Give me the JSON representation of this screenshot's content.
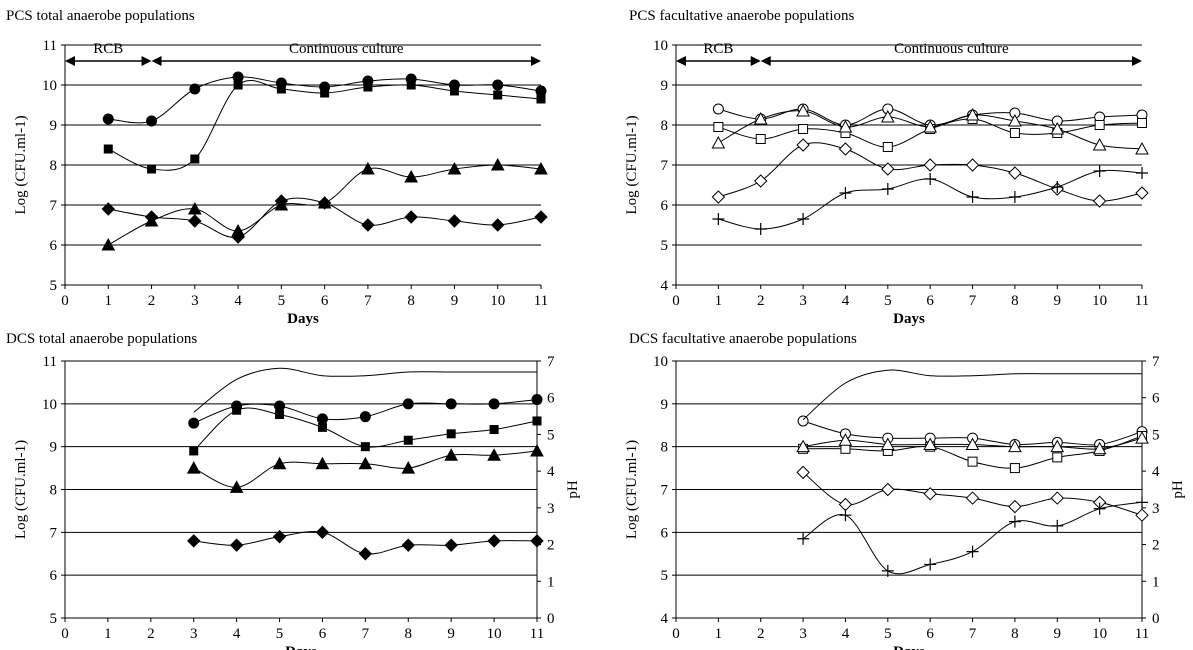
{
  "chart_data": [
    {
      "type": "line",
      "title": "PCS total anaerobe populations",
      "xlabel": "Days",
      "ylabel": "Log (CFU.ml-1)",
      "ylim": [
        5,
        11
      ],
      "xlim": [
        0,
        11
      ],
      "x_ticks": [
        "0",
        "1",
        "2",
        "3",
        "4",
        "5",
        "6",
        "7",
        "8",
        "9",
        "10",
        "11"
      ],
      "y_ticks": [
        "5",
        "6",
        "7",
        "8",
        "9",
        "10",
        "11"
      ],
      "grid": "horizontal",
      "phases": [
        {
          "label": "RCB",
          "from": 0,
          "to": 2
        },
        {
          "label": "Continuous culture",
          "from": 2,
          "to": 11
        }
      ],
      "series": [
        {
          "marker": "circle-filled",
          "x": [
            1,
            2,
            3,
            4,
            5,
            6,
            7,
            8,
            9,
            10,
            11
          ],
          "values": [
            9.15,
            9.1,
            9.9,
            10.2,
            10.05,
            9.95,
            10.1,
            10.15,
            10.0,
            10.0,
            9.85
          ]
        },
        {
          "marker": "square-filled",
          "x": [
            1,
            2,
            3,
            4,
            5,
            6,
            7,
            8,
            9,
            10,
            11
          ],
          "values": [
            8.4,
            7.9,
            8.15,
            10.0,
            9.9,
            9.8,
            9.95,
            10.0,
            9.85,
            9.75,
            9.65
          ]
        },
        {
          "marker": "triangle-filled",
          "x": [
            1,
            2,
            3,
            4,
            5,
            6,
            7,
            8,
            9,
            10,
            11
          ],
          "values": [
            6.0,
            6.6,
            6.9,
            6.35,
            7.0,
            7.05,
            7.9,
            7.7,
            7.9,
            8.0,
            7.9
          ]
        },
        {
          "marker": "diamond-filled",
          "x": [
            1,
            2,
            3,
            4,
            5,
            6,
            7,
            8,
            9,
            10,
            11
          ],
          "values": [
            6.9,
            6.7,
            6.6,
            6.2,
            7.1,
            7.05,
            6.5,
            6.7,
            6.6,
            6.5,
            6.7
          ]
        }
      ]
    },
    {
      "type": "line",
      "title": "PCS facultative anaerobe populations",
      "xlabel": "Days",
      "ylabel": "Log (CFU.ml-1)",
      "ylim": [
        4,
        10
      ],
      "xlim": [
        0,
        11
      ],
      "x_ticks": [
        "0",
        "1",
        "2",
        "3",
        "4",
        "5",
        "6",
        "7",
        "8",
        "9",
        "10",
        "11"
      ],
      "y_ticks": [
        "4",
        "5",
        "6",
        "7",
        "8",
        "9",
        "10"
      ],
      "grid": "horizontal",
      "phases": [
        {
          "label": "RCB",
          "from": 0,
          "to": 2
        },
        {
          "label": "Continuous culture",
          "from": 2,
          "to": 11
        }
      ],
      "series": [
        {
          "marker": "circle-open",
          "x": [
            1,
            2,
            3,
            4,
            5,
            6,
            7,
            8,
            9,
            10,
            11
          ],
          "values": [
            8.4,
            8.15,
            8.4,
            8.0,
            8.4,
            8.0,
            8.25,
            8.3,
            8.1,
            8.2,
            8.25
          ]
        },
        {
          "marker": "square-open",
          "x": [
            1,
            2,
            3,
            4,
            5,
            6,
            7,
            8,
            9,
            10,
            11
          ],
          "values": [
            7.95,
            7.65,
            7.9,
            7.8,
            7.45,
            7.9,
            8.15,
            7.8,
            7.8,
            8.0,
            8.05
          ]
        },
        {
          "marker": "triangle-open",
          "x": [
            1,
            2,
            3,
            4,
            5,
            6,
            7,
            8,
            9,
            10,
            11
          ],
          "values": [
            7.55,
            8.15,
            8.35,
            7.95,
            8.2,
            7.95,
            8.25,
            8.1,
            7.9,
            7.5,
            7.4
          ]
        },
        {
          "marker": "diamond-open",
          "x": [
            1,
            2,
            3,
            4,
            5,
            6,
            7,
            8,
            9,
            10,
            11
          ],
          "values": [
            6.2,
            6.6,
            7.5,
            7.4,
            6.9,
            7.0,
            7.0,
            6.8,
            6.4,
            6.1,
            6.3
          ]
        },
        {
          "marker": "plus",
          "x": [
            1,
            2,
            3,
            4,
            5,
            6,
            7,
            8,
            9,
            10,
            11
          ],
          "values": [
            5.65,
            5.4,
            5.65,
            6.3,
            6.4,
            6.65,
            6.2,
            6.2,
            6.45,
            6.85,
            6.8
          ]
        }
      ]
    },
    {
      "type": "line",
      "title": "DCS total anaerobe populations",
      "xlabel": "Days",
      "ylabel": "Log (CFU.ml-1)",
      "y2label": "pH",
      "ylim": [
        5,
        11
      ],
      "y2lim": [
        0,
        7
      ],
      "xlim": [
        0,
        11
      ],
      "x_ticks": [
        "0",
        "1",
        "2",
        "3",
        "4",
        "5",
        "6",
        "7",
        "8",
        "9",
        "10",
        "11"
      ],
      "y_ticks": [
        "5",
        "6",
        "7",
        "8",
        "9",
        "10",
        "11"
      ],
      "y2_ticks": [
        "0",
        "1",
        "2",
        "3",
        "4",
        "5",
        "6",
        "7"
      ],
      "grid": "horizontal",
      "series": [
        {
          "marker": "circle-filled",
          "x": [
            3,
            4,
            5,
            6,
            7,
            8,
            9,
            10,
            11
          ],
          "values": [
            9.55,
            9.95,
            9.95,
            9.65,
            9.7,
            10.0,
            10.0,
            10.0,
            10.1
          ]
        },
        {
          "marker": "square-filled",
          "x": [
            3,
            4,
            5,
            6,
            7,
            8,
            9,
            10,
            11
          ],
          "values": [
            8.9,
            9.85,
            9.75,
            9.45,
            9.0,
            9.15,
            9.3,
            9.4,
            9.6
          ]
        },
        {
          "marker": "triangle-filled",
          "x": [
            3,
            4,
            5,
            6,
            7,
            8,
            9,
            10,
            11
          ],
          "values": [
            8.5,
            8.05,
            8.6,
            8.6,
            8.6,
            8.5,
            8.8,
            8.8,
            8.9
          ]
        },
        {
          "marker": "diamond-filled",
          "x": [
            3,
            4,
            5,
            6,
            7,
            8,
            9,
            10,
            11
          ],
          "values": [
            6.8,
            6.7,
            6.9,
            7.0,
            6.5,
            6.7,
            6.7,
            6.8,
            6.8
          ]
        },
        {
          "marker": "none",
          "axis": "y2",
          "x": [
            3,
            4,
            5,
            6,
            7,
            8,
            9,
            10,
            11
          ],
          "values": [
            5.6,
            6.5,
            6.8,
            6.6,
            6.6,
            6.7,
            6.7,
            6.7,
            6.7
          ]
        }
      ]
    },
    {
      "type": "line",
      "title": "DCS facultative anaerobe populations",
      "xlabel": "Days",
      "ylabel": "Log (CFU.ml-1)",
      "y2label": "pH",
      "ylim": [
        4,
        10
      ],
      "y2lim": [
        0,
        7
      ],
      "xlim": [
        0,
        11
      ],
      "x_ticks": [
        "0",
        "1",
        "2",
        "3",
        "4",
        "5",
        "6",
        "7",
        "8",
        "9",
        "10",
        "11"
      ],
      "y_ticks": [
        "4",
        "5",
        "6",
        "7",
        "8",
        "9",
        "10"
      ],
      "y2_ticks": [
        "0",
        "1",
        "2",
        "3",
        "4",
        "5",
        "6",
        "7"
      ],
      "grid": "horizontal",
      "series": [
        {
          "marker": "circle-open",
          "x": [
            3,
            4,
            5,
            6,
            7,
            8,
            9,
            10,
            11
          ],
          "values": [
            8.6,
            8.3,
            8.2,
            8.2,
            8.2,
            8.05,
            8.1,
            8.05,
            8.35
          ]
        },
        {
          "marker": "square-open",
          "x": [
            3,
            4,
            5,
            6,
            7,
            8,
            9,
            10,
            11
          ],
          "values": [
            7.95,
            7.95,
            7.9,
            8.0,
            7.65,
            7.5,
            7.75,
            7.9,
            8.25
          ]
        },
        {
          "marker": "triangle-open",
          "x": [
            3,
            4,
            5,
            6,
            7,
            8,
            9,
            10,
            11
          ],
          "values": [
            8.0,
            8.15,
            8.05,
            8.05,
            8.05,
            8.0,
            8.0,
            7.95,
            8.2
          ]
        },
        {
          "marker": "diamond-open",
          "x": [
            3,
            4,
            5,
            6,
            7,
            8,
            9,
            10,
            11
          ],
          "values": [
            7.4,
            6.65,
            7.0,
            6.9,
            6.8,
            6.6,
            6.8,
            6.7,
            6.4
          ]
        },
        {
          "marker": "plus",
          "x": [
            3,
            4,
            5,
            6,
            7,
            8,
            9,
            10,
            11
          ],
          "values": [
            5.85,
            6.4,
            5.1,
            5.25,
            5.55,
            6.25,
            6.15,
            6.55,
            6.7
          ]
        },
        {
          "marker": "none",
          "axis": "y2",
          "x": [
            3,
            4,
            5,
            6,
            7,
            8,
            9,
            10,
            11
          ],
          "values": [
            5.4,
            6.4,
            6.75,
            6.6,
            6.6,
            6.65,
            6.65,
            6.65,
            6.65
          ]
        }
      ]
    }
  ]
}
